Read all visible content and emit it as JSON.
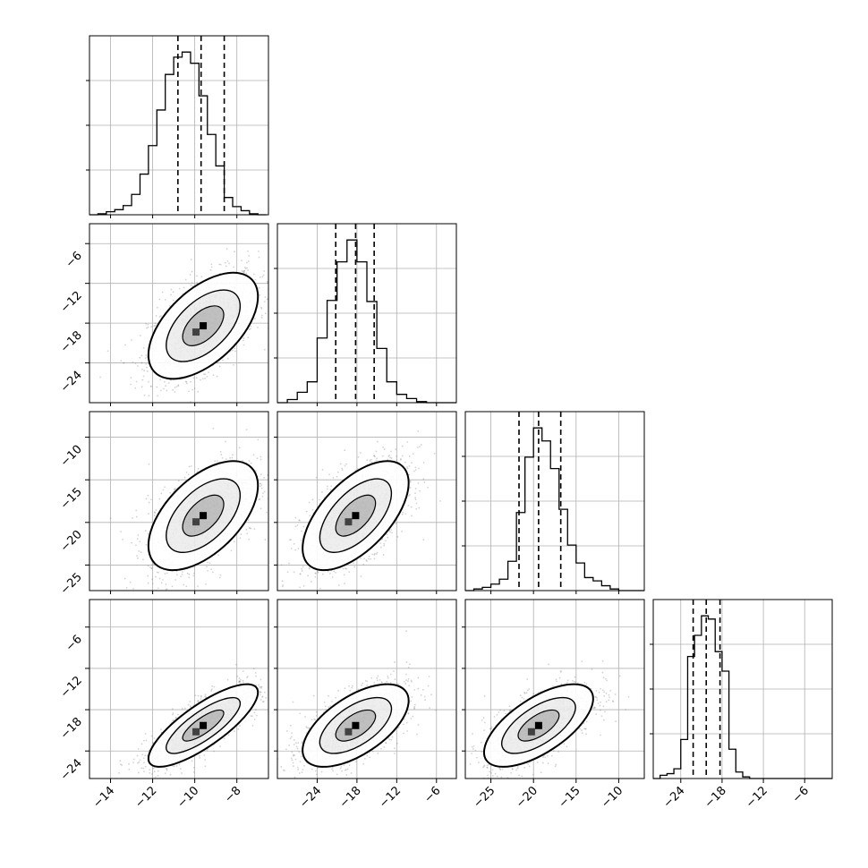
{
  "chart_data": {
    "type": "corner",
    "grid": true,
    "colors": {
      "line": "#000000",
      "grid": "#b0b0b0",
      "scatter": "#808080",
      "fill": "#000000"
    },
    "parameters": [
      {
        "range": [
          -15.0,
          -6.5
        ],
        "ticks": [
          -14,
          -12,
          -10,
          -8
        ],
        "tick_labels": [
          "−14",
          "−12",
          "−10",
          "−8"
        ],
        "quantiles": [
          -10.8,
          -9.7,
          -8.6
        ],
        "hist_edges": [
          -15,
          -14.6,
          -14.2,
          -13.8,
          -13.4,
          -13.0,
          -12.6,
          -12.2,
          -11.8,
          -11.4,
          -11.0,
          -10.6,
          -10.2,
          -9.8,
          -9.4,
          -9.0,
          -8.6,
          -8.2,
          -7.8,
          -7.4,
          -7.0,
          -6.6
        ],
        "hist_values": [
          0,
          1,
          3,
          5,
          9,
          20,
          40,
          68,
          103,
          138,
          155,
          160,
          149,
          117,
          79,
          48,
          17,
          8,
          4,
          1,
          0
        ]
      },
      {
        "range": [
          -30.0,
          -3.0
        ],
        "ticks": [
          -24,
          -18,
          -12,
          -6
        ],
        "tick_labels": [
          "−24",
          "−18",
          "−12",
          "−6"
        ],
        "quantiles": [
          -21.2,
          -18.2,
          -15.4
        ],
        "hist_edges": [
          -30,
          -28.5,
          -27,
          -25.5,
          -24,
          -22.5,
          -21,
          -19.5,
          -18,
          -16.5,
          -15,
          -13.5,
          -12,
          -10.5,
          -9,
          -7.5,
          -6,
          -4.5,
          -3
        ],
        "hist_values": [
          0,
          3,
          10,
          20,
          62,
          98,
          135,
          156,
          135,
          97,
          52,
          20,
          8,
          4,
          1,
          0,
          0,
          0
        ]
      },
      {
        "range": [
          -28.0,
          -7.0
        ],
        "ticks": [
          -25,
          -20,
          -15,
          -10
        ],
        "tick_labels": [
          "−25",
          "−20",
          "−15",
          "−10"
        ],
        "quantiles": [
          -21.7,
          -19.4,
          -16.8
        ],
        "hist_edges": [
          -28,
          -27,
          -26,
          -25,
          -24,
          -23,
          -22,
          -21,
          -20,
          -19,
          -18,
          -17,
          -16,
          -15,
          -14,
          -13,
          -12,
          -11,
          -10,
          -9,
          -8,
          -7
        ],
        "hist_values": [
          0,
          1,
          2,
          4,
          7,
          18,
          48,
          82,
          100,
          92,
          75,
          50,
          28,
          17,
          8,
          6,
          3,
          1,
          0,
          0,
          0
        ]
      },
      {
        "range": [
          -28.0,
          -2.0
        ],
        "ticks": [
          -24,
          -18,
          -12,
          -6
        ],
        "tick_labels": [
          "−24",
          "−18",
          "−12",
          "−6"
        ],
        "quantiles": [
          -22.2,
          -20.3,
          -18.3
        ],
        "hist_edges": [
          -28,
          -27,
          -26,
          -25,
          -24,
          -23,
          -22,
          -21,
          -20,
          -19,
          -18,
          -17,
          -16,
          -15,
          -14,
          -13,
          -12,
          -11,
          -10,
          -9,
          -8,
          -7,
          -6,
          -5,
          -4,
          -3,
          -2
        ],
        "hist_values": [
          0,
          2,
          3,
          6,
          24,
          75,
          88,
          100,
          98,
          78,
          66,
          18,
          4,
          1,
          0,
          0,
          0,
          0,
          0,
          0,
          0,
          0,
          0,
          0,
          0,
          0
        ]
      }
    ],
    "pairs": [
      {
        "row": 1,
        "col": 0,
        "cx": -9.6,
        "cy": -18.4,
        "sx": 1.3,
        "sy": 4.0,
        "rho": 0.55
      },
      {
        "row": 2,
        "col": 0,
        "cx": -9.6,
        "cy": -19.2,
        "sx": 1.3,
        "sy": 3.2,
        "rho": 0.55
      },
      {
        "row": 2,
        "col": 1,
        "cx": -18.2,
        "cy": -19.2,
        "sx": 4.0,
        "sy": 3.2,
        "rho": 0.6
      },
      {
        "row": 3,
        "col": 0,
        "cx": -9.6,
        "cy": -20.3,
        "sx": 1.3,
        "sy": 3.0,
        "rho": 0.8
      },
      {
        "row": 3,
        "col": 1,
        "cx": -18.2,
        "cy": -20.3,
        "sx": 4.0,
        "sy": 3.0,
        "rho": 0.6
      },
      {
        "row": 3,
        "col": 2,
        "cx": -19.4,
        "cy": -20.3,
        "sx": 3.2,
        "sy": 3.0,
        "rho": 0.65
      }
    ]
  }
}
